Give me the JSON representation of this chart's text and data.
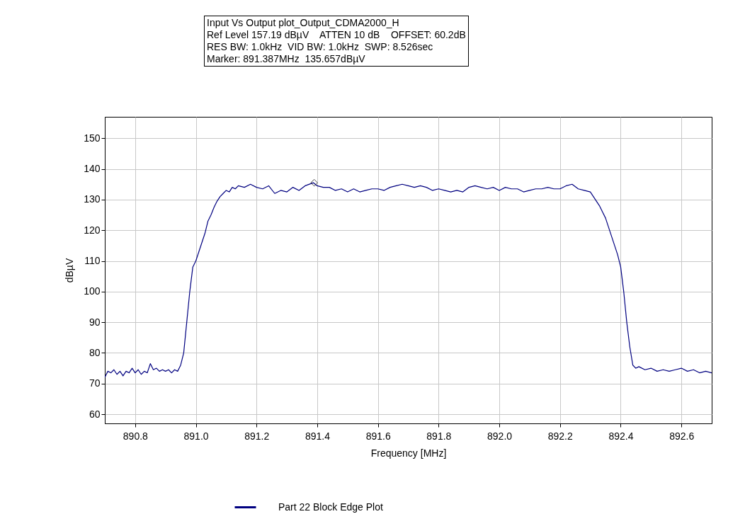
{
  "chart_data": {
    "type": "line",
    "title": "Input Vs Output plot_Output_CDMA2000_H",
    "annotations": [
      "Ref Level 157.19 dBµV    ATTEN 10 dB    OFFSET: 60.2dB",
      "RES BW: 1.0kHz  VID BW: 1.0kHz  SWP: 8.526sec",
      "Marker: 891.387MHz  135.657dBµV"
    ],
    "xlabel": "Frequency [MHz]",
    "ylabel": "dBµV",
    "xlim": [
      890.7,
      892.7
    ],
    "ylim": [
      57,
      157
    ],
    "xticks": [
      890.8,
      {
        "value": 891,
        "label": "891.0"
      },
      891.2,
      891.4,
      891.6,
      891.8,
      {
        "value": 892,
        "label": "892.0"
      },
      892.2,
      892.4,
      892.6
    ],
    "yticks": [
      60,
      70,
      80,
      90,
      100,
      110,
      120,
      130,
      140,
      150
    ],
    "grid": true,
    "legend": "bottom",
    "line_style": "solid",
    "series": [
      {
        "name": "Part 22 Block Edge Plot",
        "color": "#000080",
        "x": [
          890.7,
          890.71,
          890.72,
          890.73,
          890.74,
          890.75,
          890.76,
          890.77,
          890.78,
          890.79,
          890.8,
          890.81,
          890.82,
          890.83,
          890.84,
          890.85,
          890.86,
          890.87,
          890.88,
          890.89,
          890.9,
          890.91,
          890.92,
          890.93,
          890.94,
          890.95,
          890.96,
          890.97,
          890.98,
          890.99,
          891.0,
          891.01,
          891.02,
          891.03,
          891.04,
          891.05,
          891.06,
          891.07,
          891.08,
          891.09,
          891.1,
          891.11,
          891.12,
          891.13,
          891.14,
          891.16,
          891.18,
          891.2,
          891.22,
          891.24,
          891.26,
          891.28,
          891.3,
          891.32,
          891.34,
          891.36,
          891.387,
          891.4,
          891.42,
          891.44,
          891.46,
          891.48,
          891.5,
          891.52,
          891.54,
          891.56,
          891.58,
          891.6,
          891.62,
          891.64,
          891.66,
          891.68,
          891.7,
          891.72,
          891.74,
          891.76,
          891.78,
          891.8,
          891.82,
          891.84,
          891.86,
          891.88,
          891.9,
          891.92,
          891.94,
          891.96,
          891.98,
          892.0,
          892.02,
          892.04,
          892.06,
          892.08,
          892.1,
          892.12,
          892.14,
          892.16,
          892.18,
          892.2,
          892.22,
          892.24,
          892.26,
          892.28,
          892.3,
          892.31,
          892.32,
          892.33,
          892.34,
          892.35,
          892.36,
          892.37,
          892.38,
          892.39,
          892.4,
          892.41,
          892.42,
          892.43,
          892.44,
          892.45,
          892.46,
          892.48,
          892.5,
          892.52,
          892.54,
          892.56,
          892.58,
          892.6,
          892.62,
          892.64,
          892.66,
          892.68,
          892.7
        ],
        "values": [
          72,
          74,
          73.5,
          74.5,
          73,
          74,
          72.5,
          74,
          73.5,
          75,
          73.5,
          74.5,
          73,
          74,
          73.5,
          76.5,
          74.5,
          75,
          74,
          74.5,
          74,
          74.5,
          73.5,
          74.5,
          74,
          76,
          80,
          90,
          100,
          108,
          110,
          113,
          116,
          119,
          123,
          125,
          127.5,
          129.5,
          131,
          132,
          133,
          132.5,
          134,
          133.5,
          134.5,
          134,
          135,
          134,
          133.5,
          134.5,
          132,
          133,
          132.5,
          134,
          133,
          134.5,
          135.5,
          134.5,
          134,
          134,
          133,
          133.5,
          132.5,
          133.5,
          132.5,
          133,
          133.5,
          133.5,
          133,
          134,
          134.5,
          135,
          134.5,
          134,
          134.5,
          134,
          133,
          133.5,
          133,
          132.5,
          133,
          132.5,
          134,
          134.5,
          134,
          133.5,
          134,
          133,
          134,
          133.5,
          133.5,
          132.5,
          133,
          133.5,
          133.5,
          134,
          133.5,
          133.5,
          134.5,
          135,
          133.5,
          133,
          132.5,
          131,
          129.5,
          128,
          126,
          124,
          121,
          118,
          115,
          112,
          108,
          100,
          90,
          82,
          76,
          75,
          75.5,
          74.5,
          75,
          74,
          74.5,
          74,
          74.5,
          75,
          74,
          74.5,
          73.5,
          74,
          73.5
        ]
      },
      {
        "type": "scatter",
        "marker": "diamond",
        "color": "#000000",
        "x": [
          891.39
        ],
        "values": [
          135.5
        ]
      }
    ]
  }
}
